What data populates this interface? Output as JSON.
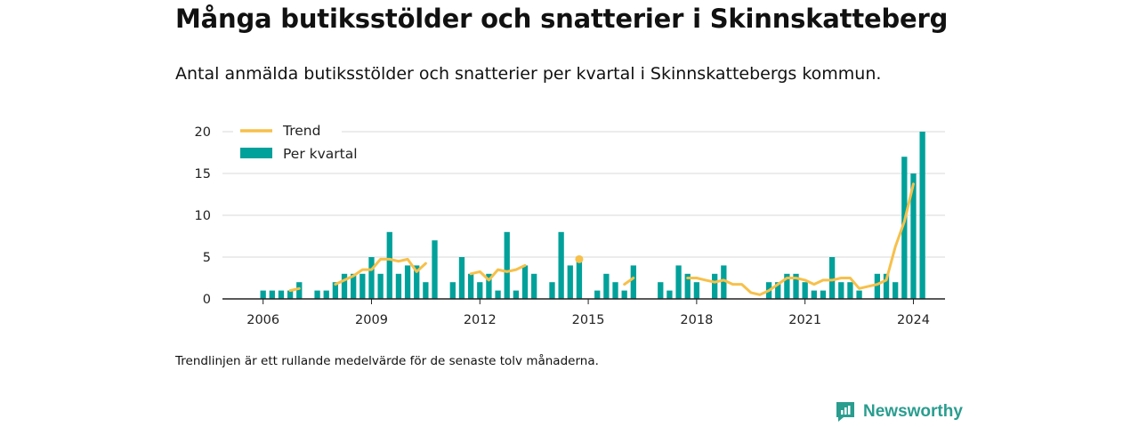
{
  "header": {
    "title": "Många butiksstölder och snatterier i Skinnskatteberg",
    "subtitle": "Antal anmälda butiksstölder och snatterier per kvartal i Skinnskattebergs kommun."
  },
  "footnote": "Trendlinjen är ett rullande medelvärde för de senaste tolv månaderna.",
  "brand": {
    "name": "Newsworthy"
  },
  "colors": {
    "bars": "#00a19a",
    "trend": "#f7c04a",
    "axis": "#222222",
    "grid": "#d9d9d9"
  },
  "chart_data": {
    "type": "bar",
    "x_ticks": [
      "2006",
      "2009",
      "2012",
      "2015",
      "2018",
      "2021",
      "2024"
    ],
    "y_ticks": [
      "0",
      "5",
      "10",
      "15",
      "20"
    ],
    "ylim": [
      0,
      20
    ],
    "xlim": [
      "2005Q1",
      "2024Q4"
    ],
    "legend": {
      "position": "top-left",
      "trend_label": "Trend",
      "bars_label": "Per kvartal"
    },
    "series": [
      {
        "name": "Per kvartal",
        "type": "bar",
        "points": [
          [
            "2006Q1",
            1
          ],
          [
            "2006Q2",
            1
          ],
          [
            "2006Q3",
            1
          ],
          [
            "2006Q4",
            1
          ],
          [
            "2007Q1",
            2
          ],
          [
            "2007Q3",
            1
          ],
          [
            "2007Q4",
            1
          ],
          [
            "2008Q1",
            2
          ],
          [
            "2008Q2",
            3
          ],
          [
            "2008Q3",
            3
          ],
          [
            "2008Q4",
            3
          ],
          [
            "2009Q1",
            5
          ],
          [
            "2009Q2",
            3
          ],
          [
            "2009Q3",
            8
          ],
          [
            "2009Q4",
            3
          ],
          [
            "2010Q1",
            4
          ],
          [
            "2010Q2",
            4
          ],
          [
            "2010Q3",
            2
          ],
          [
            "2010Q4",
            7
          ],
          [
            "2011Q2",
            2
          ],
          [
            "2011Q3",
            5
          ],
          [
            "2011Q4",
            3
          ],
          [
            "2012Q1",
            2
          ],
          [
            "2012Q2",
            3
          ],
          [
            "2012Q3",
            1
          ],
          [
            "2012Q4",
            8
          ],
          [
            "2013Q1",
            1
          ],
          [
            "2013Q2",
            4
          ],
          [
            "2013Q3",
            3
          ],
          [
            "2014Q1",
            2
          ],
          [
            "2014Q2",
            8
          ],
          [
            "2014Q3",
            4
          ],
          [
            "2014Q4",
            5
          ],
          [
            "2015Q2",
            1
          ],
          [
            "2015Q3",
            3
          ],
          [
            "2015Q4",
            2
          ],
          [
            "2016Q1",
            1
          ],
          [
            "2016Q2",
            4
          ],
          [
            "2017Q1",
            2
          ],
          [
            "2017Q2",
            1
          ],
          [
            "2017Q3",
            4
          ],
          [
            "2017Q4",
            3
          ],
          [
            "2018Q1",
            2
          ],
          [
            "2018Q3",
            3
          ],
          [
            "2018Q4",
            4
          ],
          [
            "2020Q1",
            2
          ],
          [
            "2020Q2",
            2
          ],
          [
            "2020Q3",
            3
          ],
          [
            "2020Q4",
            3
          ],
          [
            "2021Q1",
            2
          ],
          [
            "2021Q2",
            1
          ],
          [
            "2021Q3",
            1
          ],
          [
            "2021Q4",
            5
          ],
          [
            "2022Q1",
            2
          ],
          [
            "2022Q2",
            2
          ],
          [
            "2022Q3",
            1
          ],
          [
            "2023Q1",
            3
          ],
          [
            "2023Q2",
            3
          ],
          [
            "2023Q3",
            2
          ],
          [
            "2023Q4",
            17
          ],
          [
            "2024Q1",
            15
          ],
          [
            "2024Q2",
            20
          ]
        ]
      },
      {
        "name": "Trend",
        "type": "line",
        "segments": [
          [
            [
              "2006Q4",
              1.0
            ],
            [
              "2007Q1",
              1.25
            ]
          ],
          [
            [
              "2008Q1",
              1.75
            ],
            [
              "2008Q2",
              2.25
            ],
            [
              "2008Q3",
              2.75
            ],
            [
              "2008Q4",
              3.5
            ],
            [
              "2009Q1",
              3.5
            ],
            [
              "2009Q2",
              4.75
            ],
            [
              "2009Q3",
              4.75
            ],
            [
              "2009Q4",
              4.5
            ],
            [
              "2010Q1",
              4.75
            ],
            [
              "2010Q2",
              3.25
            ],
            [
              "2010Q3",
              4.25
            ]
          ],
          [
            [
              "2011Q4",
              3.0
            ],
            [
              "2012Q1",
              3.25
            ],
            [
              "2012Q2",
              2.25
            ],
            [
              "2012Q3",
              3.5
            ],
            [
              "2012Q4",
              3.25
            ],
            [
              "2013Q1",
              3.5
            ],
            [
              "2013Q2",
              4.0
            ]
          ],
          [
            [
              "2014Q4",
              4.75
            ]
          ],
          [
            [
              "2016Q1",
              1.75
            ],
            [
              "2016Q2",
              2.5
            ]
          ],
          [
            [
              "2017Q4",
              2.5
            ],
            [
              "2018Q1",
              2.5
            ],
            [
              "2018Q2",
              2.25
            ],
            [
              "2018Q3",
              2.0
            ],
            [
              "2018Q4",
              2.25
            ],
            [
              "2019Q1",
              1.75
            ],
            [
              "2019Q2",
              1.75
            ],
            [
              "2019Q3",
              0.75
            ],
            [
              "2019Q4",
              0.5
            ],
            [
              "2020Q1",
              1.0
            ],
            [
              "2020Q2",
              1.75
            ],
            [
              "2020Q3",
              2.5
            ],
            [
              "2020Q4",
              2.5
            ],
            [
              "2021Q1",
              2.25
            ],
            [
              "2021Q2",
              1.75
            ],
            [
              "2021Q3",
              2.25
            ],
            [
              "2021Q4",
              2.25
            ],
            [
              "2022Q1",
              2.5
            ],
            [
              "2022Q2",
              2.5
            ],
            [
              "2022Q3",
              1.25
            ],
            [
              "2022Q4",
              1.5
            ],
            [
              "2023Q1",
              1.75
            ],
            [
              "2023Q2",
              2.25
            ],
            [
              "2023Q3",
              6.25
            ],
            [
              "2023Q4",
              9.25
            ],
            [
              "2024Q1",
              13.75
            ]
          ]
        ]
      }
    ]
  }
}
